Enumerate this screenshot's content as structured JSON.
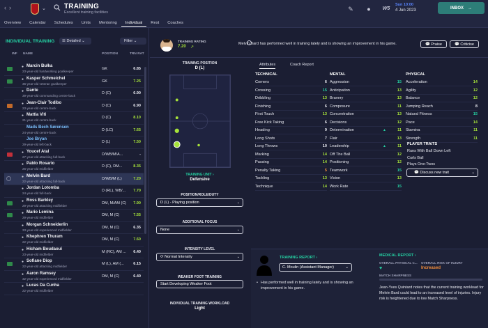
{
  "header": {
    "title": "TRAINING",
    "subtitle": "Excellent training facilities",
    "date_day": "Sun 10:00",
    "date": "4 Jun 2023",
    "inbox_label": "INBOX",
    "brand_text": "W5"
  },
  "tabs": [
    "Overview",
    "Calendar",
    "Schedules",
    "Units",
    "Mentoring",
    "Individual",
    "Rest",
    "Coaches"
  ],
  "active_tab": "Individual",
  "list": {
    "heading": "INDIVIDUAL TRAINING",
    "view_label": "Detailed",
    "filter_label": "Filter",
    "columns": {
      "inf": "INF",
      "name": "NAME",
      "position": "POSITION",
      "rating": "TRN RAT"
    },
    "players": [
      {
        "inf": "Agr",
        "inf_color": "#2f8a4a",
        "name": "Marcin Bułka",
        "desc": "23-year-old hardworking goalkeeper",
        "pos": "GK",
        "rating": "6.85",
        "rating_color": "#e8e9f0",
        "blue": false
      },
      {
        "inf": "Rst",
        "inf_color": "#2f8a4a",
        "name": "Kasper Schmeichel",
        "desc": "36-year-old veteran goalkeeper",
        "pos": "GK",
        "rating": "7.25",
        "rating_color": "#a6e23a",
        "blue": false
      },
      {
        "inf": "",
        "inf_color": "",
        "name": "Dante",
        "desc": "39-year-old commanding centre-back",
        "pos": "D (C)",
        "rating": "6.90",
        "rating_color": "#e8e9f0",
        "blue": false
      },
      {
        "inf": "Inj",
        "inf_color": "#c26a2a",
        "name": "Jean-Clair Todibo",
        "desc": "23-year-old centre-back",
        "pos": "D (C)",
        "rating": "6.90",
        "rating_color": "#e8e9f0",
        "blue": false
      },
      {
        "inf": "",
        "inf_color": "",
        "name": "Mattia Viti",
        "desc": "21-year-old centre-back",
        "pos": "D (C)",
        "rating": "8.10",
        "rating_color": "#a6e23a",
        "blue": false
      },
      {
        "inf": "",
        "inf_color": "",
        "name": "Mads Bech Sørensen",
        "desc": "24-year-old centre-back",
        "pos": "D (LC)",
        "rating": "7.65",
        "rating_color": "#a6e23a",
        "blue": true
      },
      {
        "inf": "",
        "inf_color": "",
        "name": "Joe Bryan",
        "desc": "29-year-old left-back",
        "pos": "D (L)",
        "rating": "7.50",
        "rating_color": "#a6e23a",
        "blue": true
      },
      {
        "inf": "Inj",
        "inf_color": "#c2303a",
        "name": "Youcef Atal",
        "desc": "27-year-old attacking full-back",
        "pos": "D/WB/M/A...",
        "rating": "-",
        "rating_color": "#e8e9f0",
        "blue": false
      },
      {
        "inf": "",
        "inf_color": "",
        "name": "Pablo Rosario",
        "desc": "26-year-old midfielder",
        "pos": "D (C), DM...",
        "rating": "8.35",
        "rating_color": "#a6e23a",
        "blue": false
      },
      {
        "inf": "",
        "inf_color": "",
        "name": "Melvin Bard",
        "desc": "22-year-old attacking full-back",
        "pos": "D/WB/M (L)",
        "rating": "7.20",
        "rating_color": "#a6e23a",
        "blue": false,
        "selected": true
      },
      {
        "inf": "",
        "inf_color": "",
        "name": "Jordan Lotomba",
        "desc": "24-year-old full-back",
        "pos": "D (RL), WB/...",
        "rating": "7.70",
        "rating_color": "#a6e23a",
        "blue": false
      },
      {
        "inf": "Rst",
        "inf_color": "#2f8a4a",
        "name": "Ross Barkley",
        "desc": "29-year-old attacking midfielder",
        "pos": "DM, M/AM (C)",
        "rating": "7.90",
        "rating_color": "#a6e23a",
        "blue": false
      },
      {
        "inf": "Rst",
        "inf_color": "#2f8a4a",
        "name": "Mario Lemina",
        "desc": "29-year-old midfielder",
        "pos": "DM, M (C)",
        "rating": "7.55",
        "rating_color": "#a6e23a",
        "blue": false
      },
      {
        "inf": "",
        "inf_color": "",
        "name": "Morgan Schneiderlin",
        "desc": "33-year-old experienced midfielder",
        "pos": "DM, M (C)",
        "rating": "6.35",
        "rating_color": "#e8e9f0",
        "blue": false
      },
      {
        "inf": "",
        "inf_color": "",
        "name": "Khephren Thuram",
        "desc": "22-year-old midfielder",
        "pos": "DM, M (C)",
        "rating": "7.60",
        "rating_color": "#a6e23a",
        "blue": false
      },
      {
        "inf": "",
        "inf_color": "",
        "name": "Hicham Boudaoui",
        "desc": "23-year-old midfielder",
        "pos": "M (RC), AM ...",
        "rating": "6.40",
        "rating_color": "#e8e9f0",
        "blue": false
      },
      {
        "inf": "Rst",
        "inf_color": "#2f8a4a",
        "name": "Sofiane Diop",
        "desc": "22-year-old attacking midfielder",
        "pos": "M (L), AM (...",
        "rating": "6.15",
        "rating_color": "#e8e9f0",
        "blue": false
      },
      {
        "inf": "",
        "inf_color": "",
        "name": "Aaron Ramsey",
        "desc": "32-year-old experienced midfielder",
        "pos": "DM, M (C)",
        "rating": "6.40",
        "rating_color": "#e8e9f0",
        "blue": false
      },
      {
        "inf": "",
        "inf_color": "",
        "name": "Lucas Da Cunha",
        "desc": "22-year-old midfielder",
        "pos": "",
        "rating": "",
        "rating_color": "#e8e9f0",
        "blue": false
      }
    ]
  },
  "player_card": {
    "rating_label": "TRAINING RATING",
    "rating_value": "7.20",
    "message": "Melvin Bard has performed well in training lately and is showing an improvement in his game.",
    "praise_label": "Praise",
    "criticise_label": "Criticise"
  },
  "training_position": {
    "label": "TRAINING POSITION",
    "value": "D (L)",
    "unit_label": "TRAINING UNIT",
    "unit_value": "Defensive",
    "prr_label": "POSITION/ROLE/DUTY",
    "prr_value": "D (L) - Playing position",
    "focus_label": "ADDITIONAL FOCUS",
    "focus_value": "None",
    "intensity_label": "INTENSITY LEVEL",
    "intensity_value": "Normal Intensity",
    "weaker_label": "WEAKER FOOT TRAINING",
    "weaker_value": "Start Developing Weaker Foot",
    "workload_label": "INDIVIDUAL TRAINING WORKLOAD",
    "workload_value": "Light"
  },
  "attributes": {
    "tabs": [
      "Attributes",
      "Coach Report"
    ],
    "technical_header": "TECHNICAL",
    "mental_header": "MENTAL",
    "physical_header": "PHYSICAL",
    "technical": [
      {
        "name": "Corners",
        "value": "6"
      },
      {
        "name": "Crossing",
        "value": "15"
      },
      {
        "name": "Dribbling",
        "value": "13"
      },
      {
        "name": "Finishing",
        "value": "6"
      },
      {
        "name": "First Touch",
        "value": "13"
      },
      {
        "name": "Free Kick Taking",
        "value": "6"
      },
      {
        "name": "Heading",
        "value": "9"
      },
      {
        "name": "Long Shots",
        "value": "7"
      },
      {
        "name": "Long Throws",
        "value": "10"
      },
      {
        "name": "Marking",
        "value": "14"
      },
      {
        "name": "Passing",
        "value": "14"
      },
      {
        "name": "Penalty Taking",
        "value": "5"
      },
      {
        "name": "Tackling",
        "value": "13"
      },
      {
        "name": "Technique",
        "value": "14"
      }
    ],
    "mental": [
      {
        "name": "Aggression",
        "value": "15"
      },
      {
        "name": "Anticipation",
        "value": "13"
      },
      {
        "name": "Bravery",
        "value": "13"
      },
      {
        "name": "Composure",
        "value": "11"
      },
      {
        "name": "Concentration",
        "value": "13"
      },
      {
        "name": "Decisions",
        "value": "12"
      },
      {
        "name": "Determination",
        "value": "11"
      },
      {
        "name": "Flair",
        "value": "13"
      },
      {
        "name": "Leadership",
        "value": "11"
      },
      {
        "name": "Off The Ball",
        "value": "12"
      },
      {
        "name": "Positioning",
        "value": "12"
      },
      {
        "name": "Teamwork",
        "value": "15"
      },
      {
        "name": "Vision",
        "value": "13"
      },
      {
        "name": "Work Rate",
        "value": "15"
      }
    ],
    "physical": [
      {
        "name": "Acceleration",
        "value": "14"
      },
      {
        "name": "Agility",
        "value": "12"
      },
      {
        "name": "Balance",
        "value": "12"
      },
      {
        "name": "Jumping Reach",
        "value": "8"
      },
      {
        "name": "Natural Fitness",
        "value": "15"
      },
      {
        "name": "Pace",
        "value": "14"
      },
      {
        "name": "Stamina",
        "value": "11"
      },
      {
        "name": "Strength",
        "value": "11"
      }
    ],
    "traits_header": "PLAYER TRAITS",
    "traits": [
      "Runs With Ball Down Left",
      "Curls Ball",
      "Plays One-Twos"
    ],
    "discuss_label": "Discuss new trait"
  },
  "training_report": {
    "label": "TRAINING REPORT",
    "coach": "C. Moulin (Assistant Manager)",
    "text": "Has performed well in training lately and is showing an improvement in his game."
  },
  "medical_report": {
    "label": "MEDICAL REPORT",
    "physical_label": "OVERALL PHYSICAL C...",
    "injury_label": "OVERALL RISK OF INJURY",
    "injury_value": "Increased",
    "sharpness_label": "MATCH SHARPNESS",
    "text": "Jean-Yves Quintard notes that the current training workload for Melvin Bard could lead to an increased level of injuries. Injury risk is heightened due to low Match Sharpness."
  }
}
